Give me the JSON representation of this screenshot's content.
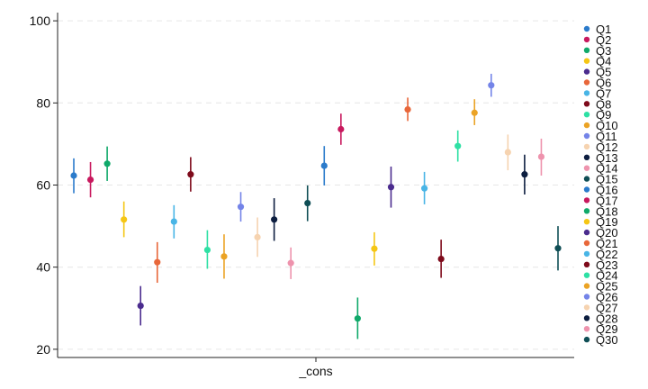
{
  "chart_data": {
    "type": "scatter",
    "title": "",
    "xlabel": "",
    "ylabel": "",
    "categories": [
      "_cons"
    ],
    "ylim": [
      18,
      102
    ],
    "yticks": [
      20,
      40,
      60,
      80,
      100
    ],
    "grid": true,
    "legend_position": "right",
    "series": [
      {
        "name": "Q1",
        "value": 62.3,
        "ci_low": 58.0,
        "ci_high": 66.5,
        "color": "#2b7bcb"
      },
      {
        "name": "Q2",
        "value": 61.3,
        "ci_low": 57.0,
        "ci_high": 65.6,
        "color": "#c8195e"
      },
      {
        "name": "Q3",
        "value": 65.2,
        "ci_low": 61.0,
        "ci_high": 69.4,
        "color": "#10a96a"
      },
      {
        "name": "Q4",
        "value": 51.6,
        "ci_low": 47.3,
        "ci_high": 56.0,
        "color": "#f5c614"
      },
      {
        "name": "Q5",
        "value": 30.6,
        "ci_low": 25.8,
        "ci_high": 35.4,
        "color": "#4b2c8e"
      },
      {
        "name": "Q6",
        "value": 41.2,
        "ci_low": 36.2,
        "ci_high": 46.1,
        "color": "#e8673a"
      },
      {
        "name": "Q7",
        "value": 51.1,
        "ci_low": 47.0,
        "ci_high": 55.1,
        "color": "#49b5e6"
      },
      {
        "name": "Q8",
        "value": 62.6,
        "ci_low": 58.4,
        "ci_high": 66.8,
        "color": "#7e0a1b"
      },
      {
        "name": "Q9",
        "value": 44.2,
        "ci_low": 39.6,
        "ci_high": 49.0,
        "color": "#2ee0a4"
      },
      {
        "name": "Q10",
        "value": 42.6,
        "ci_low": 37.2,
        "ci_high": 48.0,
        "color": "#eba325"
      },
      {
        "name": "Q11",
        "value": 54.7,
        "ci_low": 51.1,
        "ci_high": 58.3,
        "color": "#7484e8"
      },
      {
        "name": "Q12",
        "value": 47.3,
        "ci_low": 42.5,
        "ci_high": 52.1,
        "color": "#f6d3b0"
      },
      {
        "name": "Q13",
        "value": 51.6,
        "ci_low": 46.4,
        "ci_high": 56.8,
        "color": "#0d1e40"
      },
      {
        "name": "Q14",
        "value": 41.0,
        "ci_low": 37.1,
        "ci_high": 44.8,
        "color": "#ee93ad"
      },
      {
        "name": "Q15",
        "value": 55.6,
        "ci_low": 51.2,
        "ci_high": 59.9,
        "color": "#0f4e55"
      },
      {
        "name": "Q16",
        "value": 64.7,
        "ci_low": 59.9,
        "ci_high": 69.5,
        "color": "#2b7bcb"
      },
      {
        "name": "Q17",
        "value": 73.6,
        "ci_low": 69.8,
        "ci_high": 77.4,
        "color": "#c8195e"
      },
      {
        "name": "Q18",
        "value": 27.5,
        "ci_low": 22.5,
        "ci_high": 32.6,
        "color": "#10a96a"
      },
      {
        "name": "Q19",
        "value": 44.5,
        "ci_low": 40.4,
        "ci_high": 48.5,
        "color": "#f5c614"
      },
      {
        "name": "Q20",
        "value": 59.5,
        "ci_low": 54.5,
        "ci_high": 64.5,
        "color": "#4b2c8e"
      },
      {
        "name": "Q21",
        "value": 78.4,
        "ci_low": 75.6,
        "ci_high": 81.3,
        "color": "#e8673a"
      },
      {
        "name": "Q22",
        "value": 59.2,
        "ci_low": 55.3,
        "ci_high": 63.2,
        "color": "#49b5e6"
      },
      {
        "name": "Q23",
        "value": 42.0,
        "ci_low": 37.4,
        "ci_high": 46.7,
        "color": "#7e0a1b"
      },
      {
        "name": "Q24",
        "value": 69.5,
        "ci_low": 65.7,
        "ci_high": 73.3,
        "color": "#2ee0a4"
      },
      {
        "name": "Q25",
        "value": 77.6,
        "ci_low": 74.6,
        "ci_high": 80.9,
        "color": "#eba325"
      },
      {
        "name": "Q26",
        "value": 84.3,
        "ci_low": 81.5,
        "ci_high": 87.1,
        "color": "#7484e8"
      },
      {
        "name": "Q27",
        "value": 68.0,
        "ci_low": 63.6,
        "ci_high": 72.3,
        "color": "#f6d3b0"
      },
      {
        "name": "Q28",
        "value": 62.6,
        "ci_low": 57.7,
        "ci_high": 67.4,
        "color": "#0d1e40"
      },
      {
        "name": "Q29",
        "value": 66.9,
        "ci_low": 62.3,
        "ci_high": 71.3,
        "color": "#ee93ad"
      },
      {
        "name": "Q30",
        "value": 44.6,
        "ci_low": 39.2,
        "ci_high": 50.0,
        "color": "#0f4e55"
      }
    ]
  }
}
